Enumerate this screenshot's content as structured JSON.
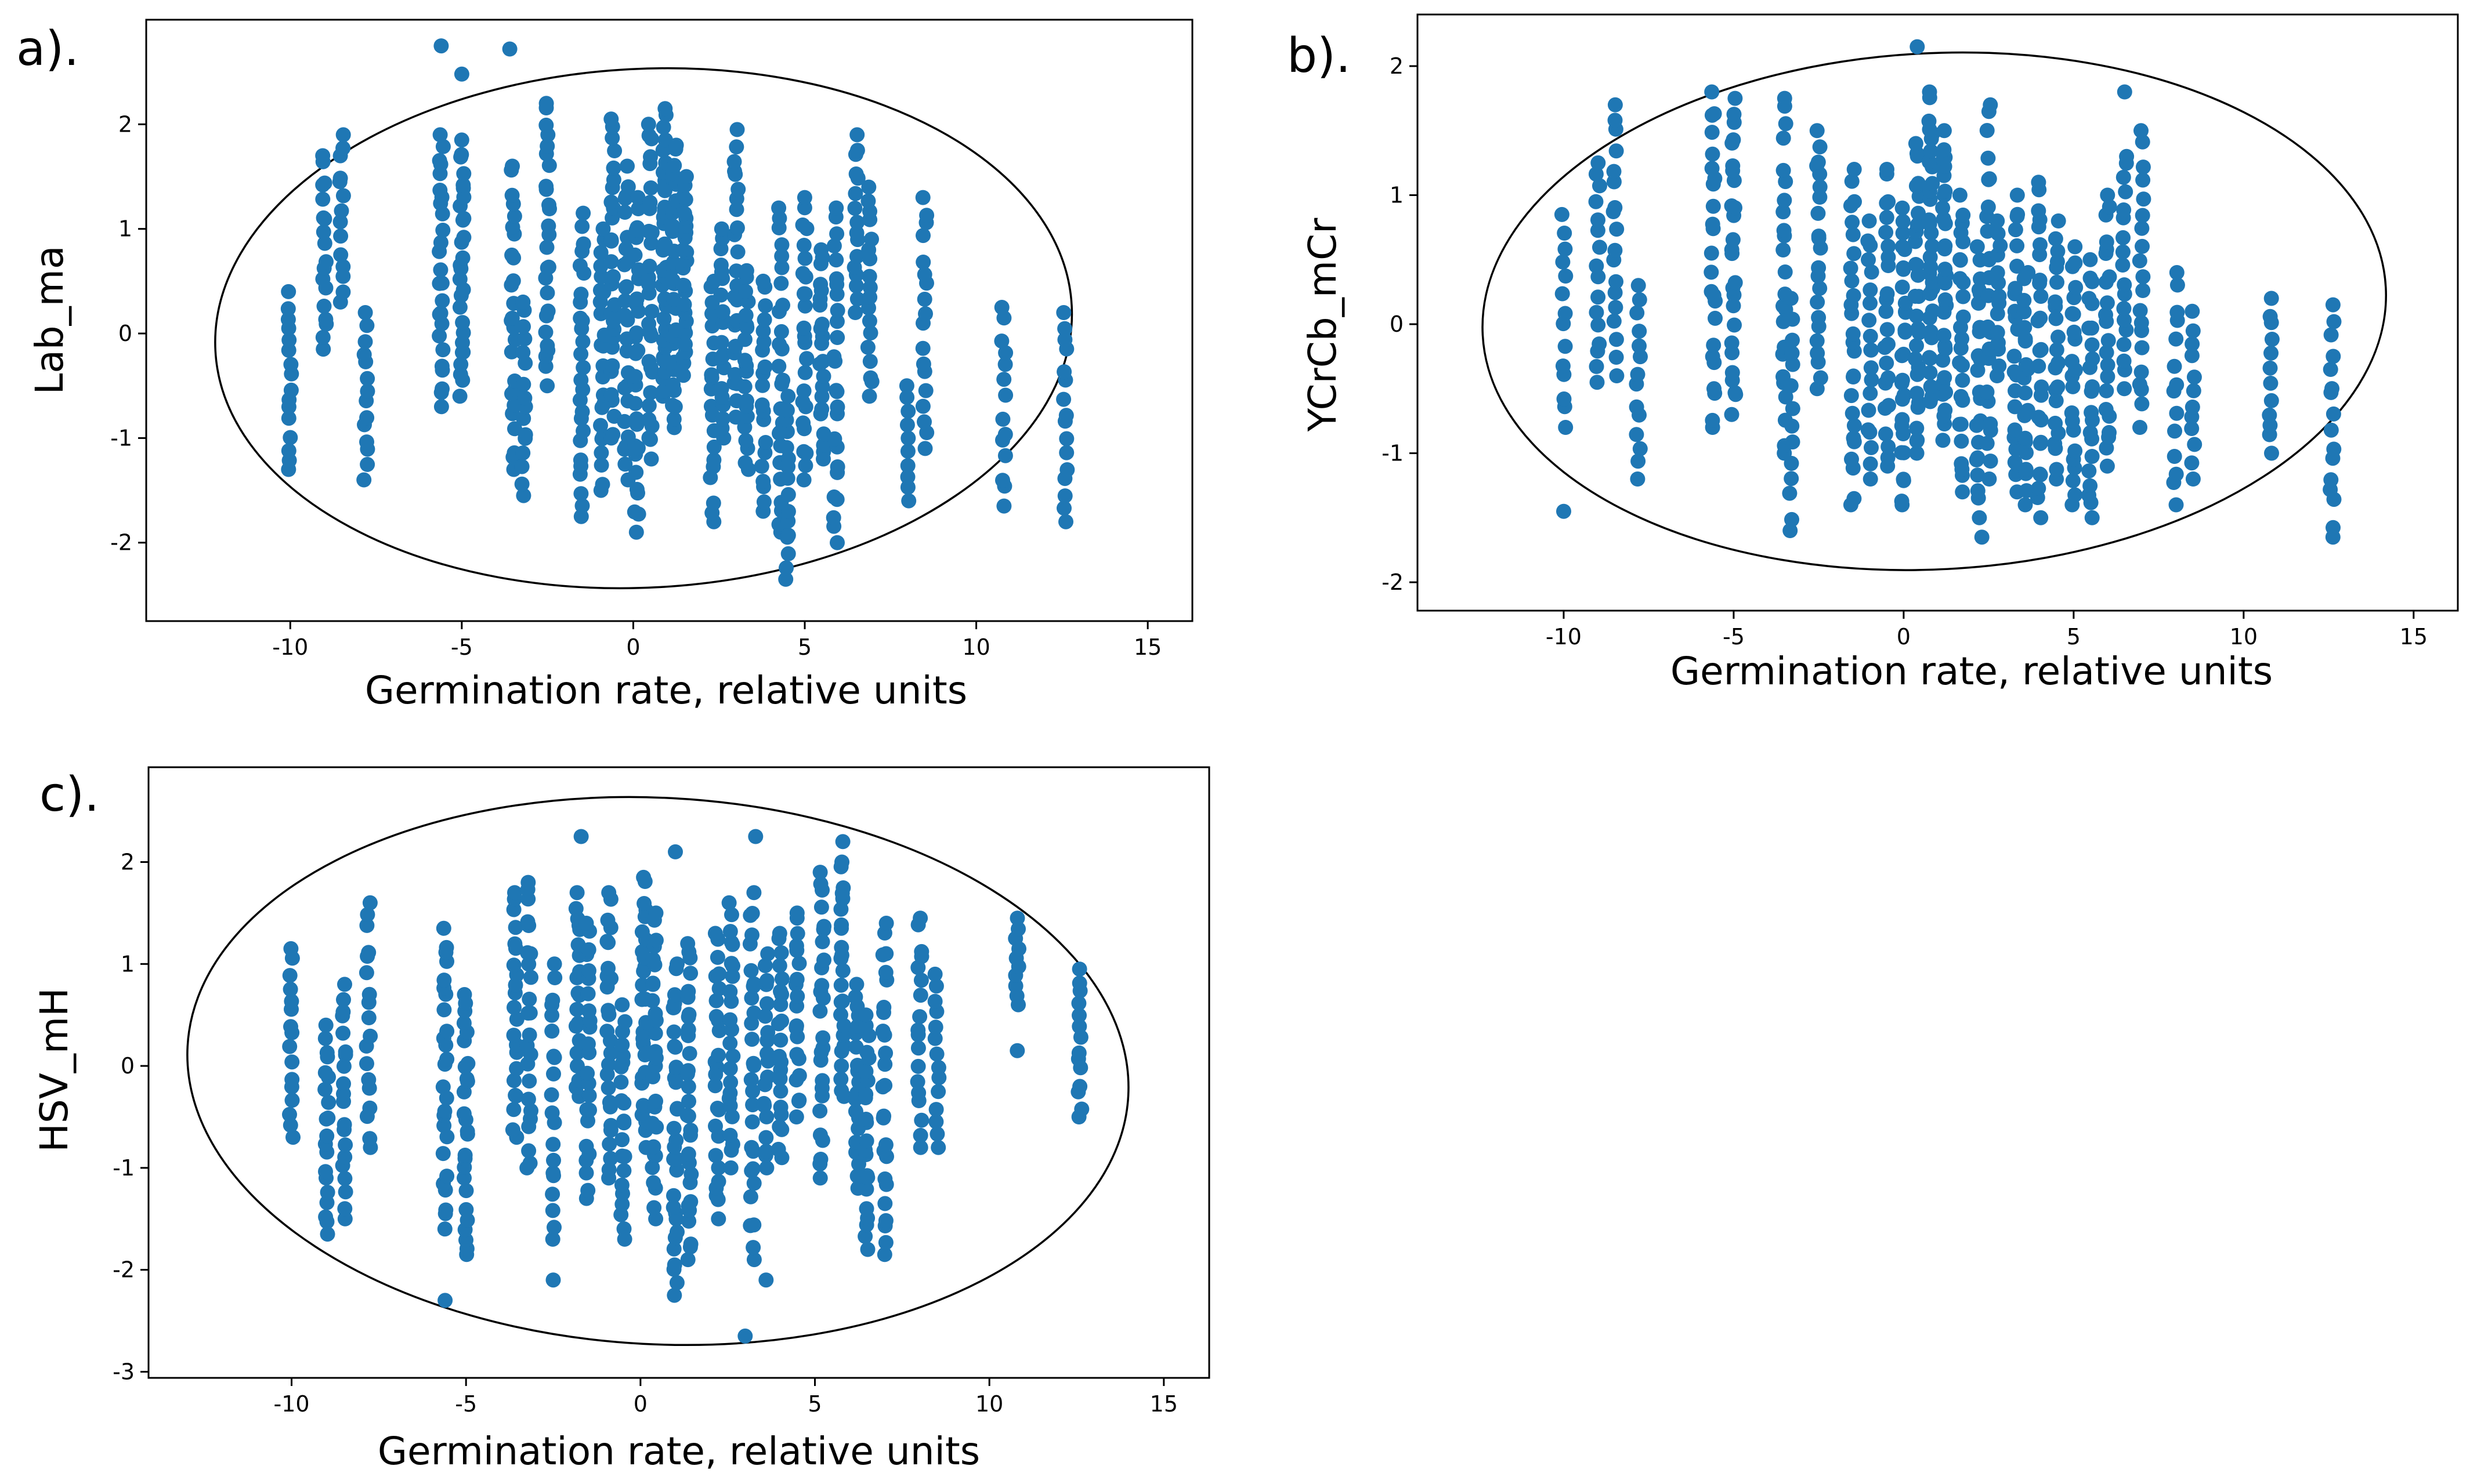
{
  "chart_data": [
    {
      "type": "scatter",
      "panel_label": "a).",
      "title": "",
      "xlabel": "Germination rate, relative units",
      "ylabel": "Lab_ma",
      "xlim": [
        -14.2,
        16.3
      ],
      "ylim": [
        -2.75,
        3.0
      ],
      "xticks": [
        -10,
        -5,
        0,
        5,
        10,
        15
      ],
      "xtick_labels": [
        "-10",
        "-5",
        "0",
        "5",
        "10",
        "15"
      ],
      "yticks": [
        -2,
        -1,
        0,
        1,
        2
      ],
      "ytick_labels": [
        "-2",
        "-1",
        "0",
        "1",
        "2"
      ],
      "marker_color": "#1f77b4",
      "confidence_ellipse": {
        "center": [
          0.3,
          0.05
        ],
        "semi_x": 12.5,
        "semi_y": 2.48,
        "angle_deg": -3
      },
      "columns": [
        {
          "x": -10.0,
          "ymin": -1.3,
          "ymax": 0.4,
          "n": 16
        },
        {
          "x": -9.0,
          "ymin": -0.15,
          "ymax": 1.7,
          "n": 18
        },
        {
          "x": -8.5,
          "ymin": 0.3,
          "ymax": 1.9,
          "n": 14
        },
        {
          "x": -7.8,
          "ymin": -1.4,
          "ymax": 0.2,
          "n": 14
        },
        {
          "x": -5.6,
          "ymin": -0.7,
          "ymax": 1.9,
          "n": 26
        },
        {
          "x": -5.0,
          "ymin": -0.6,
          "ymax": 1.85,
          "n": 28
        },
        {
          "x": -3.5,
          "ymin": -1.3,
          "ymax": 1.6,
          "n": 26
        },
        {
          "x": -3.2,
          "ymin": -1.55,
          "ymax": 0.3,
          "n": 16
        },
        {
          "x": -2.5,
          "ymin": -0.5,
          "ymax": 2.2,
          "n": 26
        },
        {
          "x": -1.5,
          "ymin": -1.75,
          "ymax": 1.15,
          "n": 28
        },
        {
          "x": -0.9,
          "ymin": -1.5,
          "ymax": 1.0,
          "n": 24
        },
        {
          "x": -0.6,
          "ymin": -1.0,
          "ymax": 2.05,
          "n": 28
        },
        {
          "x": -0.2,
          "ymin": -1.4,
          "ymax": 1.6,
          "n": 26
        },
        {
          "x": 0.1,
          "ymin": -1.9,
          "ymax": 1.3,
          "n": 30
        },
        {
          "x": 0.5,
          "ymin": -1.2,
          "ymax": 2.0,
          "n": 30
        },
        {
          "x": 0.9,
          "ymin": -0.6,
          "ymax": 2.15,
          "n": 34
        },
        {
          "x": 1.2,
          "ymin": -0.9,
          "ymax": 1.8,
          "n": 34
        },
        {
          "x": 1.5,
          "ymin": -0.4,
          "ymax": 1.5,
          "n": 26
        },
        {
          "x": 2.3,
          "ymin": -1.8,
          "ymax": 0.5,
          "n": 20
        },
        {
          "x": 2.6,
          "ymin": -1.0,
          "ymax": 1.0,
          "n": 20
        },
        {
          "x": 3.0,
          "ymin": -0.8,
          "ymax": 1.95,
          "n": 24
        },
        {
          "x": 3.3,
          "ymin": -1.3,
          "ymax": 0.6,
          "n": 20
        },
        {
          "x": 3.8,
          "ymin": -1.7,
          "ymax": 0.5,
          "n": 20
        },
        {
          "x": 4.3,
          "ymin": -1.9,
          "ymax": 1.2,
          "n": 26
        },
        {
          "x": 4.5,
          "ymin": -2.35,
          "ymax": -0.6,
          "n": 16
        },
        {
          "x": 5.0,
          "ymin": -1.4,
          "ymax": 1.3,
          "n": 26
        },
        {
          "x": 5.5,
          "ymin": -1.2,
          "ymax": 0.8,
          "n": 22
        },
        {
          "x": 5.9,
          "ymin": -2.0,
          "ymax": 1.2,
          "n": 26
        },
        {
          "x": 6.5,
          "ymin": 0.2,
          "ymax": 1.9,
          "n": 16
        },
        {
          "x": 6.9,
          "ymin": -0.6,
          "ymax": 1.4,
          "n": 18
        },
        {
          "x": 8.0,
          "ymin": -1.6,
          "ymax": -0.5,
          "n": 10
        },
        {
          "x": 8.5,
          "ymin": -1.1,
          "ymax": 1.3,
          "n": 18
        },
        {
          "x": 10.8,
          "ymin": -1.65,
          "ymax": 0.25,
          "n": 14
        },
        {
          "x": 12.6,
          "ymin": -1.8,
          "ymax": 0.2,
          "n": 16
        }
      ],
      "extra_points": [
        {
          "x": -5.6,
          "y": 2.75
        },
        {
          "x": -5.0,
          "y": 2.48
        },
        {
          "x": -3.6,
          "y": 2.72
        }
      ]
    },
    {
      "type": "scatter",
      "panel_label": "b).",
      "title": "",
      "xlabel": "Germination rate, relative units",
      "ylabel": "YCrCb_mCr",
      "xlim": [
        -14.3,
        16.3
      ],
      "ylim": [
        -2.22,
        2.4
      ],
      "xticks": [
        -10,
        -5,
        0,
        5,
        10,
        15
      ],
      "xtick_labels": [
        "-10",
        "-5",
        "0",
        "5",
        "10",
        "15"
      ],
      "yticks": [
        -2,
        -1,
        0,
        1,
        2
      ],
      "ytick_labels": [
        "-2",
        "-1",
        "0",
        "1",
        "2"
      ],
      "marker_color": "#1f77b4",
      "confidence_ellipse": {
        "center": [
          0.9,
          0.1
        ],
        "semi_x": 13.3,
        "semi_y": 2.0,
        "angle_deg": -3
      },
      "columns": [
        {
          "x": -10.0,
          "ymin": -0.8,
          "ymax": 0.85,
          "n": 14
        },
        {
          "x": -9.0,
          "ymin": -0.45,
          "ymax": 1.25,
          "n": 16
        },
        {
          "x": -8.5,
          "ymin": -0.4,
          "ymax": 1.7,
          "n": 18
        },
        {
          "x": -7.8,
          "ymin": -1.2,
          "ymax": 0.3,
          "n": 14
        },
        {
          "x": -5.6,
          "ymin": -0.8,
          "ymax": 1.8,
          "n": 24
        },
        {
          "x": -5.0,
          "ymin": -0.7,
          "ymax": 1.75,
          "n": 26
        },
        {
          "x": -3.5,
          "ymin": -1.0,
          "ymax": 1.75,
          "n": 24
        },
        {
          "x": -3.3,
          "ymin": -1.6,
          "ymax": 0.2,
          "n": 14
        },
        {
          "x": -2.5,
          "ymin": -0.5,
          "ymax": 1.5,
          "n": 22
        },
        {
          "x": -1.5,
          "ymin": -1.4,
          "ymax": 1.2,
          "n": 26
        },
        {
          "x": -1.0,
          "ymin": -1.2,
          "ymax": 0.8,
          "n": 20
        },
        {
          "x": -0.5,
          "ymin": -1.1,
          "ymax": 1.2,
          "n": 24
        },
        {
          "x": 0.0,
          "ymin": -1.4,
          "ymax": 0.9,
          "n": 28
        },
        {
          "x": 0.4,
          "ymin": -1.0,
          "ymax": 1.4,
          "n": 30
        },
        {
          "x": 0.8,
          "ymin": -0.6,
          "ymax": 1.8,
          "n": 32
        },
        {
          "x": 1.2,
          "ymin": -0.9,
          "ymax": 1.5,
          "n": 32
        },
        {
          "x": 1.7,
          "ymin": -1.3,
          "ymax": 1.0,
          "n": 26
        },
        {
          "x": 2.2,
          "ymin": -1.5,
          "ymax": 0.6,
          "n": 22
        },
        {
          "x": 2.5,
          "ymin": -1.2,
          "ymax": 1.7,
          "n": 24
        },
        {
          "x": 2.8,
          "ymin": -0.4,
          "ymax": 0.8,
          "n": 14
        },
        {
          "x": 3.3,
          "ymin": -1.3,
          "ymax": 1.0,
          "n": 22
        },
        {
          "x": 3.6,
          "ymin": -1.4,
          "ymax": 0.4,
          "n": 20
        },
        {
          "x": 4.0,
          "ymin": -1.5,
          "ymax": 1.1,
          "n": 26
        },
        {
          "x": 4.5,
          "ymin": -1.2,
          "ymax": 0.8,
          "n": 22
        },
        {
          "x": 5.0,
          "ymin": -1.4,
          "ymax": 0.6,
          "n": 22
        },
        {
          "x": 5.5,
          "ymin": -1.5,
          "ymax": 0.5,
          "n": 22
        },
        {
          "x": 6.0,
          "ymin": -1.1,
          "ymax": 1.0,
          "n": 22
        },
        {
          "x": 6.5,
          "ymin": -0.5,
          "ymax": 1.3,
          "n": 18
        },
        {
          "x": 7.0,
          "ymin": -0.8,
          "ymax": 1.5,
          "n": 20
        },
        {
          "x": 8.0,
          "ymin": -1.4,
          "ymax": 0.4,
          "n": 14
        },
        {
          "x": 8.5,
          "ymin": -1.2,
          "ymax": 0.1,
          "n": 12
        },
        {
          "x": 10.8,
          "ymin": -1.0,
          "ymax": 0.2,
          "n": 12
        },
        {
          "x": 12.6,
          "ymin": -1.65,
          "ymax": 0.15,
          "n": 16
        }
      ],
      "extra_points": [
        {
          "x": 0.4,
          "y": 2.15
        },
        {
          "x": 6.5,
          "y": 1.8
        },
        {
          "x": -10.0,
          "y": -1.45
        },
        {
          "x": 2.3,
          "y": -1.65
        }
      ]
    },
    {
      "type": "scatter",
      "panel_label": "c).",
      "title": "",
      "xlabel": "Germination rate, relative units",
      "ylabel": "HSV_mH",
      "xlim": [
        -14.1,
        16.3
      ],
      "ylim": [
        -3.06,
        2.93
      ],
      "xticks": [
        -10,
        -5,
        0,
        5,
        10,
        15
      ],
      "xtick_labels": [
        "-10",
        "-5",
        "0",
        "5",
        "10",
        "15"
      ],
      "yticks": [
        -3,
        -2,
        -1,
        0,
        1,
        2
      ],
      "ytick_labels": [
        "-3",
        "-2",
        "-1",
        "0",
        "1",
        "2"
      ],
      "marker_color": "#1f77b4",
      "confidence_ellipse": {
        "center": [
          0.5,
          -0.05
        ],
        "semi_x": 13.5,
        "semi_y": 2.68,
        "angle_deg": 3
      },
      "columns": [
        {
          "x": -10.0,
          "ymin": -0.7,
          "ymax": 1.15,
          "n": 16
        },
        {
          "x": -9.0,
          "ymin": -1.65,
          "ymax": 0.4,
          "n": 20
        },
        {
          "x": -8.5,
          "ymin": -1.5,
          "ymax": 0.8,
          "n": 20
        },
        {
          "x": -7.8,
          "ymin": -0.8,
          "ymax": 1.6,
          "n": 18
        },
        {
          "x": -5.6,
          "ymin": -1.6,
          "ymax": 1.35,
          "n": 26
        },
        {
          "x": -5.0,
          "ymin": -1.85,
          "ymax": 0.7,
          "n": 26
        },
        {
          "x": -3.6,
          "ymin": -0.7,
          "ymax": 1.7,
          "n": 22
        },
        {
          "x": -3.2,
          "ymin": -1.0,
          "ymax": 1.8,
          "n": 24
        },
        {
          "x": -2.5,
          "ymin": -1.7,
          "ymax": 1.0,
          "n": 20
        },
        {
          "x": -1.8,
          "ymin": -0.3,
          "ymax": 1.7,
          "n": 20
        },
        {
          "x": -1.5,
          "ymin": -1.3,
          "ymax": 1.4,
          "n": 24
        },
        {
          "x": -0.9,
          "ymin": -1.1,
          "ymax": 1.7,
          "n": 26
        },
        {
          "x": -0.5,
          "ymin": -1.7,
          "ymax": 0.6,
          "n": 22
        },
        {
          "x": 0.1,
          "ymin": -0.8,
          "ymax": 1.85,
          "n": 28
        },
        {
          "x": 0.4,
          "ymin": -1.5,
          "ymax": 1.5,
          "n": 28
        },
        {
          "x": 1.0,
          "ymin": -2.25,
          "ymax": 1.0,
          "n": 32
        },
        {
          "x": 1.4,
          "ymin": -1.9,
          "ymax": 1.2,
          "n": 30
        },
        {
          "x": 2.2,
          "ymin": -1.5,
          "ymax": 1.3,
          "n": 26
        },
        {
          "x": 2.6,
          "ymin": -1.0,
          "ymax": 1.6,
          "n": 24
        },
        {
          "x": 3.2,
          "ymin": -1.9,
          "ymax": 1.7,
          "n": 28
        },
        {
          "x": 3.6,
          "ymin": -1.0,
          "ymax": 1.1,
          "n": 20
        },
        {
          "x": 4.0,
          "ymin": -0.9,
          "ymax": 1.3,
          "n": 22
        },
        {
          "x": 4.5,
          "ymin": -0.5,
          "ymax": 1.5,
          "n": 20
        },
        {
          "x": 5.2,
          "ymin": -1.1,
          "ymax": 1.9,
          "n": 26
        },
        {
          "x": 5.8,
          "ymin": -0.3,
          "ymax": 2.0,
          "n": 24
        },
        {
          "x": 6.2,
          "ymin": -1.2,
          "ymax": 0.8,
          "n": 20
        },
        {
          "x": 6.5,
          "ymin": -1.8,
          "ymax": 0.5,
          "n": 22
        },
        {
          "x": 7.0,
          "ymin": -1.85,
          "ymax": 1.4,
          "n": 26
        },
        {
          "x": 8.0,
          "ymin": -0.8,
          "ymax": 1.45,
          "n": 18
        },
        {
          "x": 8.5,
          "ymin": -0.8,
          "ymax": 0.9,
          "n": 14
        },
        {
          "x": 10.8,
          "ymin": 0.6,
          "ymax": 1.45,
          "n": 10
        },
        {
          "x": 12.6,
          "ymin": -0.5,
          "ymax": 0.95,
          "n": 14
        }
      ],
      "extra_points": [
        {
          "x": -5.6,
          "y": -2.3
        },
        {
          "x": -1.7,
          "y": 2.25
        },
        {
          "x": 1.0,
          "y": 2.1
        },
        {
          "x": 3.3,
          "y": 2.25
        },
        {
          "x": 5.8,
          "y": 2.2
        },
        {
          "x": 3.0,
          "y": -2.65
        },
        {
          "x": 3.6,
          "y": -2.1
        },
        {
          "x": -2.5,
          "y": -2.1
        },
        {
          "x": 10.8,
          "y": 0.15
        }
      ]
    }
  ]
}
